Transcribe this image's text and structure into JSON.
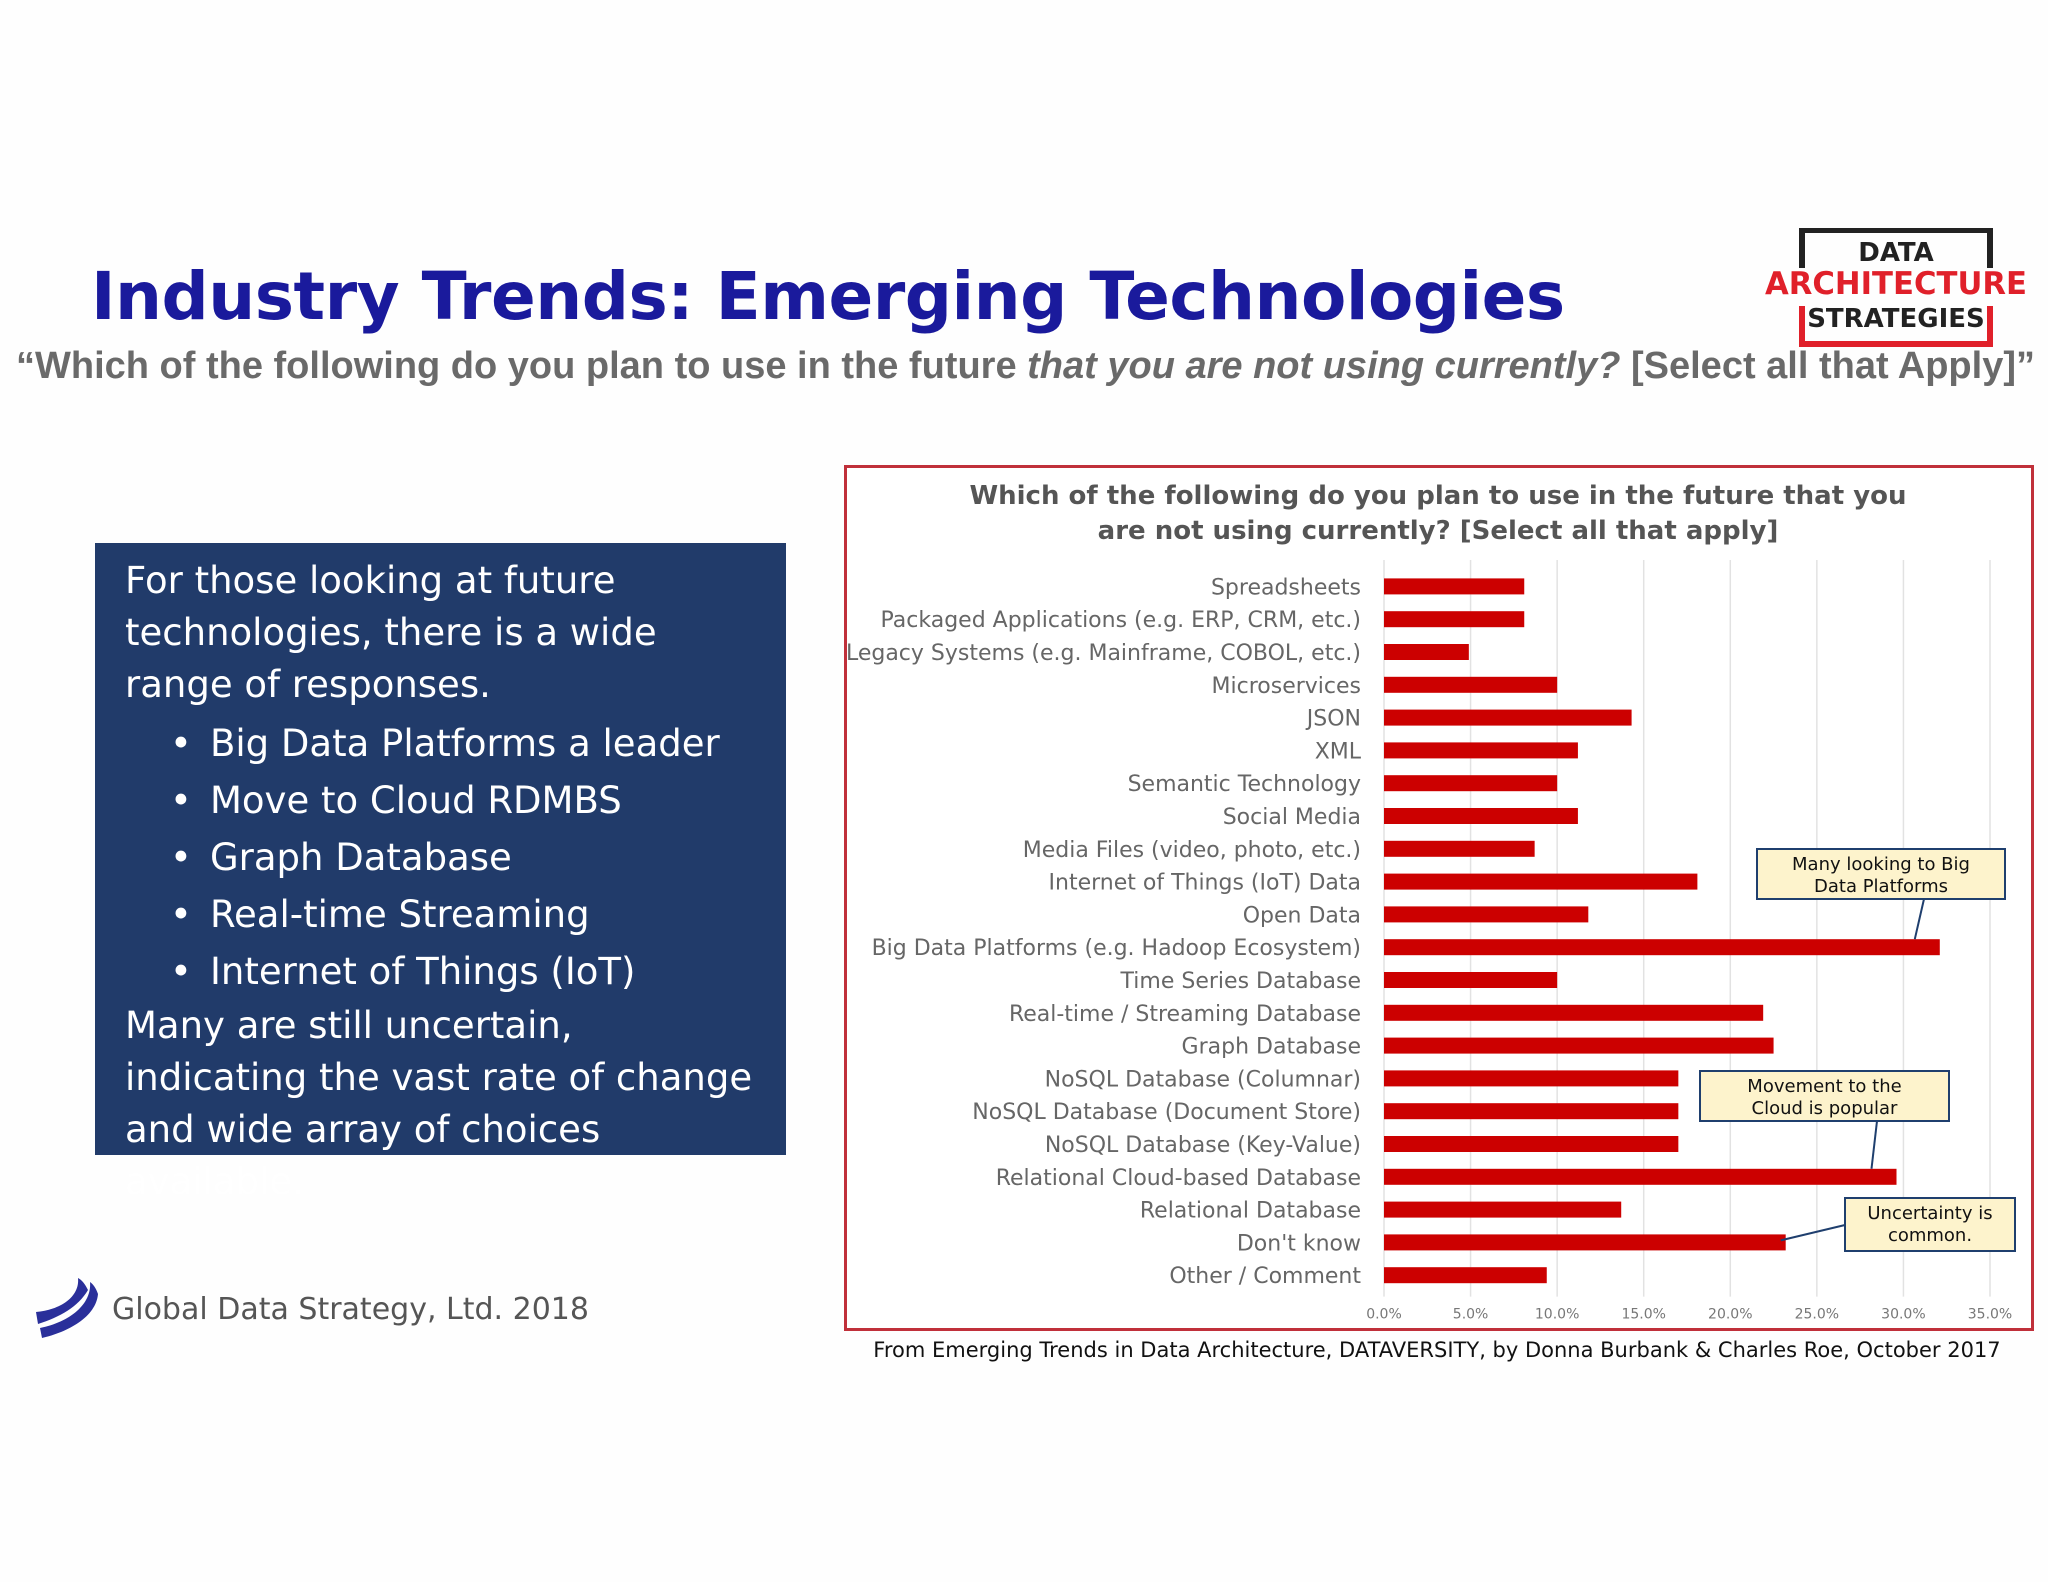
{
  "header": {
    "title": "Industry Trends: Emerging Technologies",
    "subtitle_part1": "“Which of the following do you plan to use in the future ",
    "subtitle_italic": "that you are not using currently?",
    "subtitle_part2": " [Select all that Apply]”",
    "logo": {
      "line1": "DATA",
      "line2": "ARCHITECTURE",
      "line3": "STRATEGIES",
      "colors": {
        "dark": "#222222",
        "red": "#e0202a"
      }
    }
  },
  "summary_box": {
    "intro": "For those looking at future technologies, there is a wide range of responses.",
    "bullets": [
      "Big Data Platforms a leader",
      "Move to Cloud RDMBS",
      "Graph Database",
      "Real-time Streaming",
      "Internet of Things (IoT)"
    ],
    "conclusion": "Many are still uncertain, indicating the vast rate of change and wide array of choices available.",
    "background": "#213b6a"
  },
  "footer": {
    "company": "Global Data Strategy, Ltd. 2018",
    "source": "From Emerging Trends in Data Architecture, DATAVERSITY, by Donna Burbank & Charles Roe, October 2017"
  },
  "chart_data": {
    "type": "bar",
    "orientation": "horizontal",
    "title_line1": "Which of the following do you plan to use in the future that you",
    "title_line2": "are not using currently? [Select all that apply]",
    "categories": [
      "Spreadsheets",
      "Packaged Applications (e.g. ERP, CRM, etc.)",
      "Legacy Systems (e.g. Mainframe, COBOL, etc.)",
      "Microservices",
      "JSON",
      "XML",
      "Semantic Technology",
      "Social Media",
      "Media Files (video, photo, etc.)",
      "Internet of Things (IoT) Data",
      "Open Data",
      "Big Data Platforms (e.g. Hadoop Ecosystem)",
      "Time Series Database",
      "Real-time / Streaming Database",
      "Graph Database",
      "NoSQL Database (Columnar)",
      "NoSQL Database (Document Store)",
      "NoSQL Database (Key-Value)",
      "Relational Cloud-based Database",
      "Relational Database",
      "Don't know",
      "Other / Comment"
    ],
    "values": [
      8.1,
      8.1,
      4.9,
      10.0,
      14.3,
      11.2,
      10.0,
      11.2,
      8.7,
      18.1,
      11.8,
      32.1,
      10.0,
      21.9,
      22.5,
      17.0,
      17.0,
      17.0,
      29.6,
      13.7,
      23.2,
      9.4
    ],
    "xlim": [
      0,
      35
    ],
    "xticks": [
      "0.0%",
      "5.0%",
      "10.0%",
      "15.0%",
      "20.0%",
      "25.0%",
      "30.0%",
      "35.0%"
    ],
    "grid": true,
    "bar_color": "#cc0000",
    "frame_color": "#c0303a",
    "annotations": [
      {
        "text_line1": "Many looking to Big",
        "text_line2": "Data Platforms",
        "target": "Big Data Platforms (e.g. Hadoop Ecosystem)"
      },
      {
        "text_line1": "Movement to the",
        "text_line2": "Cloud is popular",
        "target": "Relational Cloud-based Database"
      },
      {
        "text_line1": "Uncertainty is",
        "text_line2": "common.",
        "target": "Don't know"
      }
    ]
  }
}
